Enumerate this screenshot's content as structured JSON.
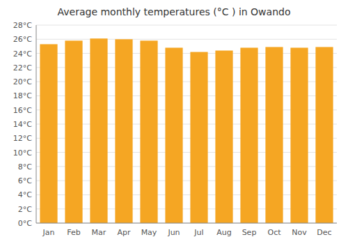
{
  "chart_data": {
    "type": "bar",
    "title": "Average monthly temperatures (°C ) in Owando",
    "categories": [
      "Jan",
      "Feb",
      "Mar",
      "Apr",
      "May",
      "Jun",
      "Jul",
      "Aug",
      "Sep",
      "Oct",
      "Nov",
      "Dec"
    ],
    "values": [
      25.3,
      25.8,
      26.1,
      26.0,
      25.8,
      24.8,
      24.2,
      24.4,
      24.8,
      24.9,
      24.8,
      24.9
    ],
    "color": "#F5A623",
    "ylim": [
      0,
      28
    ],
    "yticks": [
      {
        "value": 0,
        "label": "0°C"
      },
      {
        "value": 2,
        "label": "2°C"
      },
      {
        "value": 4,
        "label": "4°C"
      },
      {
        "value": 6,
        "label": "6°C"
      },
      {
        "value": 8,
        "label": "8°C"
      },
      {
        "value": 10,
        "label": "10°C"
      },
      {
        "value": 12,
        "label": "12°C"
      },
      {
        "value": 14,
        "label": "14°C"
      },
      {
        "value": 16,
        "label": "16°C"
      },
      {
        "value": 18,
        "label": "18°C"
      },
      {
        "value": 20,
        "label": "20°C"
      },
      {
        "value": 22,
        "label": "22°C"
      },
      {
        "value": 24,
        "label": "24°C"
      },
      {
        "value": 26,
        "label": "26°C"
      },
      {
        "value": 28,
        "label": "28°C"
      }
    ],
    "grid": true
  }
}
